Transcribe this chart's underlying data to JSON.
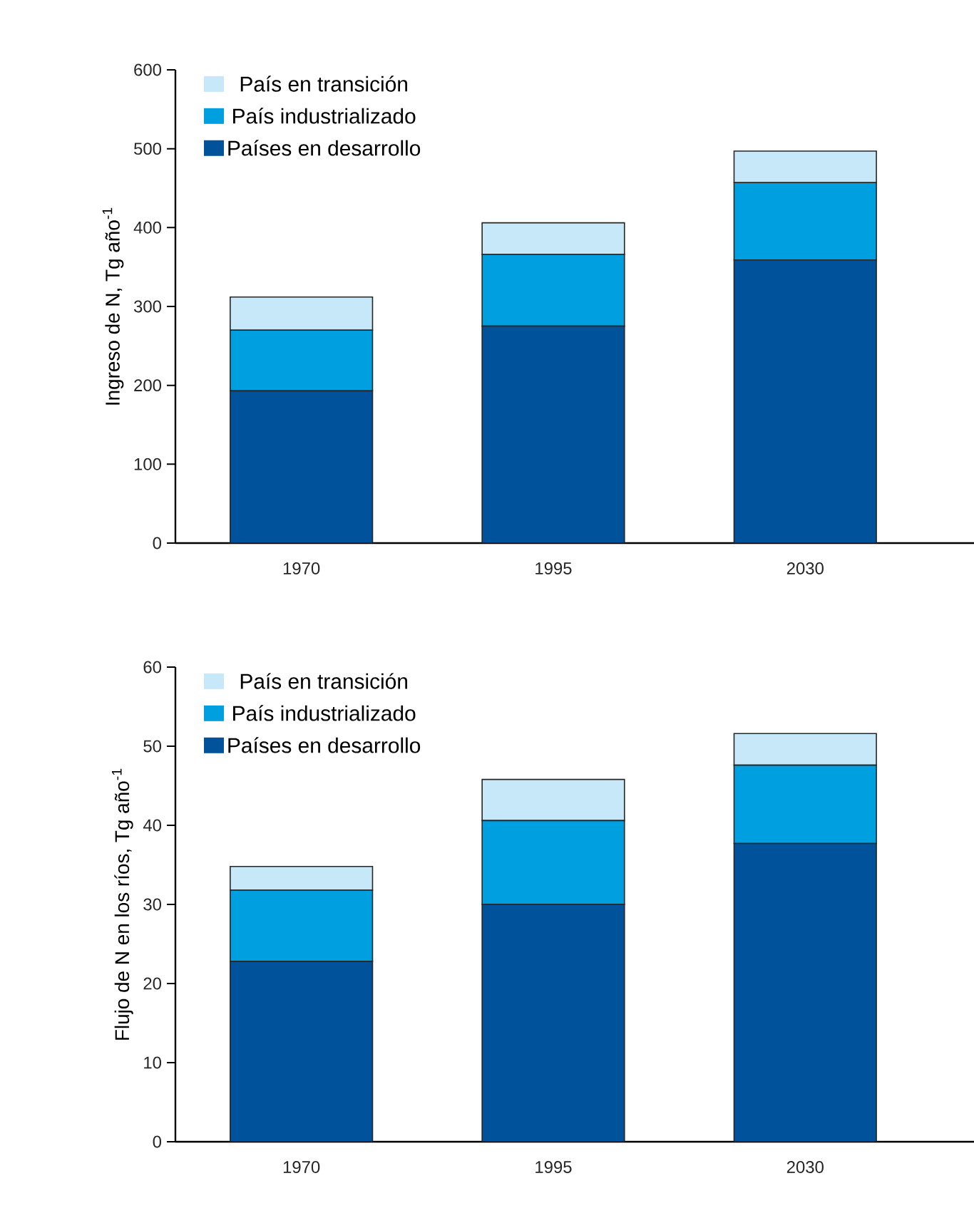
{
  "chart_data": [
    {
      "type": "bar",
      "stacked": true,
      "categories": [
        "1970",
        "1995",
        "2030"
      ],
      "ylabel": "Ingreso de N, Tg año$^{-1}$",
      "ylim": [
        0,
        600
      ],
      "yticks": [
        0,
        100,
        200,
        300,
        400,
        500,
        600
      ],
      "legend": "top left",
      "grid": false,
      "series": [
        {
          "name": "Países en desarrollo",
          "color": "#00529b",
          "values": [
            193,
            275,
            359
          ]
        },
        {
          "name": "País industrializado",
          "color": "#009fdf",
          "values": [
            77,
            91,
            98
          ]
        },
        {
          "name": "País en transición",
          "color": "#c6e8f8",
          "values": [
            42,
            40,
            40
          ]
        }
      ]
    },
    {
      "type": "bar",
      "stacked": true,
      "categories": [
        "1970",
        "1995",
        "2030"
      ],
      "ylabel": "Flujo de N en los ríos, Tg año$^{-1}$",
      "ylim": [
        0,
        60
      ],
      "yticks": [
        0,
        10,
        20,
        30,
        40,
        50,
        60
      ],
      "legend": "top left",
      "grid": false,
      "series": [
        {
          "name": "Países en desarrollo",
          "color": "#00529b",
          "values": [
            22.8,
            30.0,
            37.7
          ]
        },
        {
          "name": "País industrializado",
          "color": "#009fdf",
          "values": [
            9.0,
            10.6,
            9.9
          ]
        },
        {
          "name": "País en transición",
          "color": "#c6e8f8",
          "values": [
            3.0,
            5.2,
            4.0
          ]
        }
      ]
    }
  ]
}
